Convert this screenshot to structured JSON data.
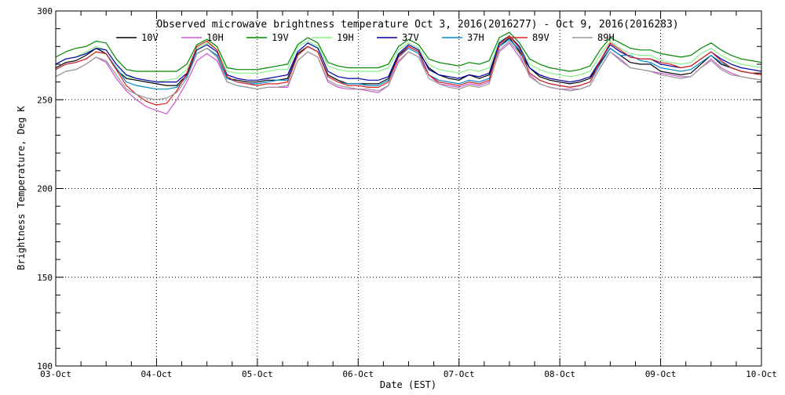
{
  "chart_data": {
    "type": "line",
    "title": "Observed microwave brightness temperature Oct  3, 2016(2016277) - Oct  9, 2016(2016283)",
    "xlabel": "Date (EST)",
    "ylabel": "Brightness Temperature, Deg K",
    "ylim": [
      100,
      300
    ],
    "xlim": [
      0,
      7
    ],
    "grid": true,
    "legend_position": "top",
    "x_ticks": [
      {
        "value": 0,
        "label": "03-Oct"
      },
      {
        "value": 1,
        "label": "04-Oct"
      },
      {
        "value": 2,
        "label": "05-Oct"
      },
      {
        "value": 3,
        "label": "06-Oct"
      },
      {
        "value": 4,
        "label": "07-Oct"
      },
      {
        "value": 5,
        "label": "08-Oct"
      },
      {
        "value": 6,
        "label": "09-Oct"
      },
      {
        "value": 7,
        "label": "10-Oct"
      }
    ],
    "y_ticks": [
      100,
      150,
      200,
      250,
      300
    ],
    "x": [
      0,
      0.1,
      0.2,
      0.3,
      0.4,
      0.5,
      0.6,
      0.7,
      0.8,
      0.9,
      1.0,
      1.1,
      1.2,
      1.3,
      1.4,
      1.5,
      1.6,
      1.7,
      1.8,
      1.9,
      2.0,
      2.1,
      2.2,
      2.3,
      2.4,
      2.5,
      2.6,
      2.7,
      2.8,
      2.9,
      3.0,
      3.1,
      3.2,
      3.3,
      3.4,
      3.5,
      3.6,
      3.7,
      3.8,
      3.9,
      4.0,
      4.1,
      4.2,
      4.3,
      4.4,
      4.5,
      4.6,
      4.7,
      4.8,
      4.9,
      5.0,
      5.1,
      5.2,
      5.3,
      5.4,
      5.5,
      5.6,
      5.7,
      5.8,
      5.9,
      6.0,
      6.1,
      6.2,
      6.3,
      6.4,
      6.5,
      6.6,
      6.7,
      6.8,
      6.9,
      7.0
    ],
    "series": [
      {
        "name": "10V",
        "color": "#000000",
        "values": [
          268,
          271,
          272,
          275,
          279,
          276,
          267,
          262,
          261,
          260,
          259,
          258,
          258,
          264,
          276,
          279,
          275,
          262,
          261,
          260,
          260,
          261,
          261,
          262,
          276,
          280,
          277,
          264,
          261,
          259,
          259,
          259,
          259,
          262,
          275,
          280,
          277,
          268,
          264,
          262,
          261,
          264,
          262,
          264,
          280,
          285,
          277,
          268,
          263,
          261,
          260,
          259,
          260,
          262,
          271,
          279,
          275,
          271,
          270,
          270,
          266,
          265,
          264,
          265,
          270,
          275,
          270,
          268,
          266,
          265,
          265
        ]
      },
      {
        "name": "10H",
        "color": "#cc55cc",
        "values": [
          263,
          266,
          267,
          270,
          274,
          271,
          262,
          255,
          250,
          246,
          244,
          242,
          250,
          260,
          272,
          276,
          272,
          260,
          258,
          257,
          256,
          257,
          257,
          257,
          272,
          277,
          274,
          260,
          257,
          256,
          256,
          255,
          254,
          258,
          272,
          277,
          274,
          264,
          259,
          258,
          257,
          259,
          258,
          260,
          277,
          282,
          274,
          264,
          259,
          257,
          256,
          256,
          256,
          258,
          268,
          277,
          273,
          268,
          267,
          266,
          265,
          264,
          263,
          263,
          268,
          273,
          268,
          265,
          263,
          262,
          261
        ]
      },
      {
        "name": "19V",
        "color": "#008800",
        "values": [
          274,
          277,
          279,
          280,
          283,
          282,
          273,
          267,
          266,
          266,
          266,
          266,
          266,
          270,
          281,
          284,
          280,
          268,
          267,
          267,
          267,
          268,
          269,
          270,
          281,
          285,
          282,
          271,
          269,
          268,
          268,
          268,
          268,
          270,
          280,
          284,
          281,
          273,
          271,
          270,
          269,
          271,
          270,
          272,
          285,
          288,
          282,
          273,
          270,
          268,
          267,
          266,
          267,
          269,
          278,
          285,
          282,
          279,
          278,
          278,
          276,
          275,
          274,
          275,
          279,
          282,
          278,
          275,
          273,
          272,
          271
        ]
      },
      {
        "name": "19H",
        "color": "#88ee88",
        "values": [
          270,
          273,
          274,
          277,
          280,
          278,
          270,
          263,
          262,
          261,
          260,
          261,
          262,
          267,
          279,
          282,
          278,
          266,
          265,
          265,
          265,
          266,
          267,
          267,
          280,
          283,
          280,
          269,
          267,
          266,
          266,
          266,
          266,
          268,
          278,
          282,
          279,
          270,
          267,
          266,
          265,
          267,
          266,
          268,
          283,
          286,
          280,
          270,
          267,
          265,
          264,
          263,
          264,
          266,
          275,
          283,
          279,
          276,
          275,
          275,
          272,
          271,
          270,
          271,
          276,
          279,
          275,
          272,
          270,
          269,
          268
        ]
      },
      {
        "name": "37V",
        "color": "#0000aa",
        "values": [
          270,
          273,
          274,
          276,
          279,
          278,
          270,
          264,
          262,
          261,
          260,
          260,
          260,
          265,
          278,
          281,
          277,
          264,
          262,
          261,
          261,
          262,
          263,
          264,
          277,
          282,
          279,
          266,
          263,
          262,
          262,
          261,
          261,
          263,
          276,
          281,
          278,
          267,
          264,
          263,
          262,
          264,
          263,
          265,
          282,
          286,
          280,
          268,
          264,
          262,
          261,
          260,
          261,
          263,
          272,
          281,
          277,
          274,
          273,
          273,
          270,
          269,
          268,
          269,
          273,
          277,
          273,
          270,
          268,
          267,
          266
        ]
      },
      {
        "name": "37H",
        "color": "#0088cc",
        "values": [
          267,
          270,
          271,
          273,
          277,
          276,
          268,
          260,
          258,
          257,
          256,
          256,
          257,
          263,
          276,
          279,
          275,
          262,
          260,
          259,
          259,
          260,
          261,
          261,
          275,
          280,
          277,
          263,
          260,
          259,
          259,
          258,
          258,
          261,
          274,
          279,
          276,
          264,
          261,
          260,
          259,
          261,
          260,
          262,
          280,
          284,
          278,
          265,
          261,
          259,
          258,
          257,
          258,
          260,
          270,
          279,
          275,
          275,
          272,
          271,
          268,
          267,
          266,
          267,
          271,
          275,
          271,
          268,
          266,
          265,
          264
        ]
      },
      {
        "name": "89V",
        "color": "#dd2222",
        "values": [
          267,
          270,
          271,
          273,
          277,
          276,
          267,
          258,
          253,
          249,
          247,
          248,
          255,
          265,
          280,
          283,
          278,
          263,
          260,
          259,
          258,
          259,
          259,
          260,
          275,
          280,
          277,
          263,
          260,
          258,
          258,
          257,
          257,
          260,
          274,
          280,
          277,
          264,
          260,
          259,
          258,
          260,
          259,
          261,
          281,
          286,
          279,
          265,
          261,
          259,
          258,
          257,
          258,
          260,
          272,
          282,
          278,
          274,
          273,
          273,
          271,
          270,
          268,
          269,
          273,
          277,
          272,
          268,
          266,
          265,
          264
        ]
      },
      {
        "name": "89H",
        "color": "#999999",
        "values": [
          263,
          266,
          267,
          270,
          274,
          272,
          264,
          256,
          253,
          251,
          250,
          251,
          254,
          262,
          276,
          279,
          274,
          260,
          258,
          257,
          256,
          257,
          257,
          258,
          272,
          277,
          274,
          261,
          258,
          257,
          256,
          256,
          255,
          258,
          271,
          277,
          274,
          262,
          259,
          257,
          256,
          258,
          257,
          259,
          278,
          283,
          276,
          263,
          259,
          257,
          256,
          255,
          256,
          258,
          268,
          277,
          272,
          268,
          267,
          266,
          264,
          263,
          262,
          263,
          268,
          272,
          267,
          264,
          263,
          262,
          261
        ]
      }
    ]
  }
}
